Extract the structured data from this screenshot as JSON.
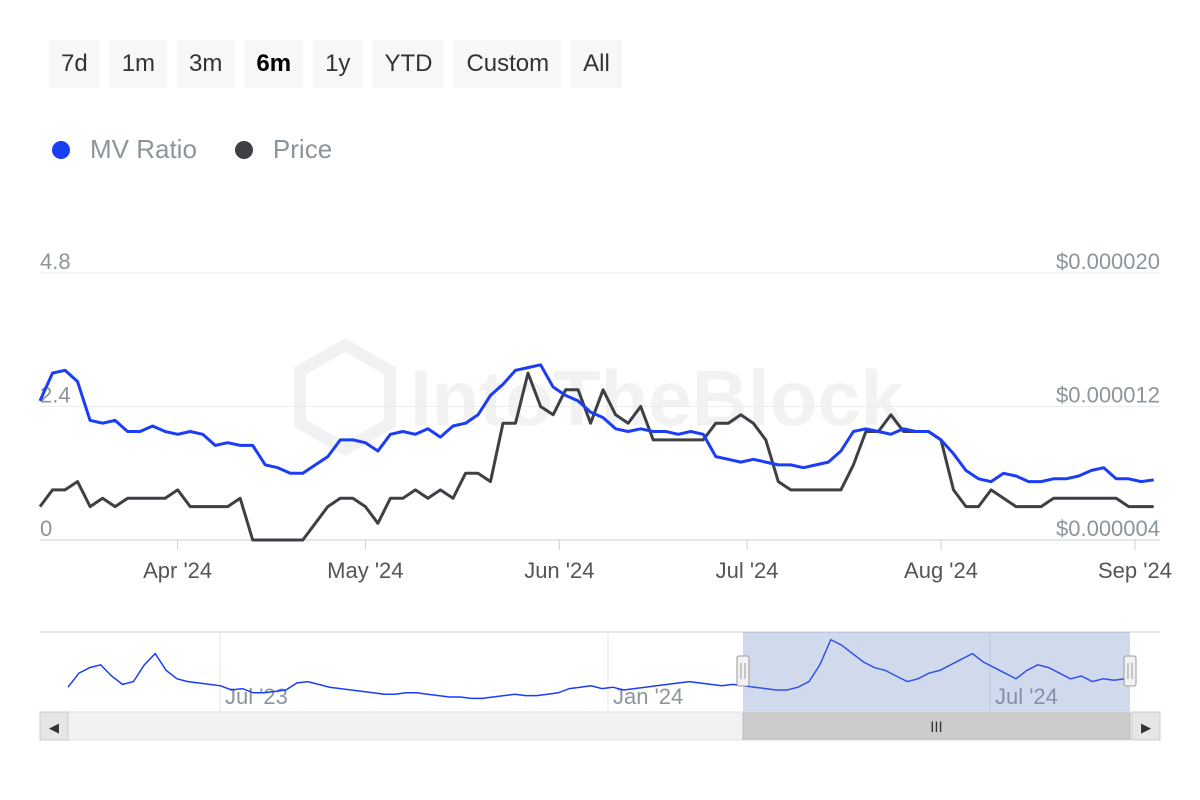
{
  "range_selector": {
    "buttons": [
      {
        "label": "7d",
        "selected": false
      },
      {
        "label": "1m",
        "selected": false
      },
      {
        "label": "3m",
        "selected": false
      },
      {
        "label": "6m",
        "selected": true
      },
      {
        "label": "1y",
        "selected": false
      },
      {
        "label": "YTD",
        "selected": false
      },
      {
        "label": "Custom",
        "selected": false
      },
      {
        "label": "All",
        "selected": false
      }
    ]
  },
  "legend": {
    "items": [
      {
        "label": "MV Ratio",
        "color": "#1a3df5"
      },
      {
        "label": "Price",
        "color": "#3d4045"
      }
    ]
  },
  "watermark": {
    "text": "IntoTheBlock"
  },
  "chart_data": {
    "type": "line",
    "title": "",
    "xlabel": "",
    "x_range": [
      "2024-03-10",
      "2024-09-05"
    ],
    "x_ticks": [
      {
        "date": "2024-04-01",
        "label": "Apr '24"
      },
      {
        "date": "2024-05-01",
        "label": "May '24"
      },
      {
        "date": "2024-06-01",
        "label": "Jun '24"
      },
      {
        "date": "2024-07-01",
        "label": "Jul '24"
      },
      {
        "date": "2024-08-01",
        "label": "Aug '24"
      },
      {
        "date": "2024-09-01",
        "label": "Sep '24"
      }
    ],
    "y_left": {
      "range": [
        0,
        4.8
      ],
      "ticks": [
        "0",
        "2.4",
        "4.8"
      ]
    },
    "y_right": {
      "range": [
        4e-06,
        2e-05
      ],
      "ticks": [
        "$0.000004",
        "$0.000012",
        "$0.000020"
      ]
    },
    "grid": true,
    "legend_position": "top-left",
    "series": [
      {
        "name": "MV Ratio",
        "axis": "left",
        "color": "#1a3df5",
        "x": [
          "2024-03-10",
          "2024-03-12",
          "2024-03-14",
          "2024-03-16",
          "2024-03-18",
          "2024-03-20",
          "2024-03-22",
          "2024-03-24",
          "2024-03-26",
          "2024-03-28",
          "2024-03-30",
          "2024-04-01",
          "2024-04-03",
          "2024-04-05",
          "2024-04-07",
          "2024-04-09",
          "2024-04-11",
          "2024-04-13",
          "2024-04-15",
          "2024-04-17",
          "2024-04-19",
          "2024-04-21",
          "2024-04-23",
          "2024-04-25",
          "2024-04-27",
          "2024-04-29",
          "2024-05-01",
          "2024-05-03",
          "2024-05-05",
          "2024-05-07",
          "2024-05-09",
          "2024-05-11",
          "2024-05-13",
          "2024-05-15",
          "2024-05-17",
          "2024-05-19",
          "2024-05-21",
          "2024-05-23",
          "2024-05-25",
          "2024-05-27",
          "2024-05-29",
          "2024-05-31",
          "2024-06-02",
          "2024-06-04",
          "2024-06-06",
          "2024-06-08",
          "2024-06-10",
          "2024-06-12",
          "2024-06-14",
          "2024-06-16",
          "2024-06-18",
          "2024-06-20",
          "2024-06-22",
          "2024-06-24",
          "2024-06-26",
          "2024-06-28",
          "2024-06-30",
          "2024-07-02",
          "2024-07-04",
          "2024-07-06",
          "2024-07-08",
          "2024-07-10",
          "2024-07-12",
          "2024-07-14",
          "2024-07-16",
          "2024-07-18",
          "2024-07-20",
          "2024-07-22",
          "2024-07-24",
          "2024-07-26",
          "2024-07-28",
          "2024-07-30",
          "2024-08-01",
          "2024-08-03",
          "2024-08-05",
          "2024-08-07",
          "2024-08-09",
          "2024-08-11",
          "2024-08-13",
          "2024-08-15",
          "2024-08-17",
          "2024-08-19",
          "2024-08-21",
          "2024-08-23",
          "2024-08-25",
          "2024-08-27",
          "2024-08-29",
          "2024-08-31",
          "2024-09-02",
          "2024-09-04"
        ],
        "y": [
          2.5,
          3.0,
          3.05,
          2.85,
          2.15,
          2.1,
          2.15,
          1.95,
          1.95,
          2.05,
          1.95,
          1.9,
          1.95,
          1.9,
          1.7,
          1.75,
          1.7,
          1.7,
          1.35,
          1.3,
          1.2,
          1.2,
          1.35,
          1.5,
          1.8,
          1.8,
          1.75,
          1.6,
          1.9,
          1.95,
          1.9,
          2.0,
          1.85,
          2.05,
          2.1,
          2.25,
          2.6,
          2.8,
          3.05,
          3.1,
          3.15,
          2.75,
          2.6,
          2.5,
          2.3,
          2.2,
          2.0,
          1.95,
          2.0,
          1.95,
          1.95,
          1.9,
          1.95,
          1.9,
          1.5,
          1.45,
          1.4,
          1.45,
          1.4,
          1.35,
          1.35,
          1.3,
          1.35,
          1.4,
          1.6,
          1.95,
          2.0,
          1.95,
          1.9,
          2.0,
          1.95,
          1.95,
          1.8,
          1.55,
          1.25,
          1.1,
          1.05,
          1.2,
          1.15,
          1.05,
          1.05,
          1.1,
          1.1,
          1.15,
          1.25,
          1.3,
          1.1,
          1.1,
          1.05,
          1.08
        ]
      },
      {
        "name": "Price",
        "axis": "right",
        "color": "#3d4045",
        "x": [
          "2024-03-10",
          "2024-03-12",
          "2024-03-14",
          "2024-03-16",
          "2024-03-18",
          "2024-03-20",
          "2024-03-22",
          "2024-03-24",
          "2024-03-26",
          "2024-03-28",
          "2024-03-30",
          "2024-04-01",
          "2024-04-03",
          "2024-04-05",
          "2024-04-07",
          "2024-04-09",
          "2024-04-11",
          "2024-04-13",
          "2024-04-15",
          "2024-04-17",
          "2024-04-19",
          "2024-04-21",
          "2024-04-23",
          "2024-04-25",
          "2024-04-27",
          "2024-04-29",
          "2024-05-01",
          "2024-05-03",
          "2024-05-05",
          "2024-05-07",
          "2024-05-09",
          "2024-05-11",
          "2024-05-13",
          "2024-05-15",
          "2024-05-17",
          "2024-05-19",
          "2024-05-21",
          "2024-05-23",
          "2024-05-25",
          "2024-05-27",
          "2024-05-29",
          "2024-05-31",
          "2024-06-02",
          "2024-06-04",
          "2024-06-06",
          "2024-06-08",
          "2024-06-10",
          "2024-06-12",
          "2024-06-14",
          "2024-06-16",
          "2024-06-18",
          "2024-06-20",
          "2024-06-22",
          "2024-06-24",
          "2024-06-26",
          "2024-06-28",
          "2024-06-30",
          "2024-07-02",
          "2024-07-04",
          "2024-07-06",
          "2024-07-08",
          "2024-07-10",
          "2024-07-12",
          "2024-07-14",
          "2024-07-16",
          "2024-07-18",
          "2024-07-20",
          "2024-07-22",
          "2024-07-24",
          "2024-07-26",
          "2024-07-28",
          "2024-07-30",
          "2024-08-01",
          "2024-08-03",
          "2024-08-05",
          "2024-08-07",
          "2024-08-09",
          "2024-08-11",
          "2024-08-13",
          "2024-08-15",
          "2024-08-17",
          "2024-08-19",
          "2024-08-21",
          "2024-08-23",
          "2024-08-25",
          "2024-08-27",
          "2024-08-29",
          "2024-08-31",
          "2024-09-02",
          "2024-09-04"
        ],
        "y": [
          6e-06,
          7e-06,
          7e-06,
          7.5e-06,
          6e-06,
          6.5e-06,
          6e-06,
          6.5e-06,
          6.5e-06,
          6.5e-06,
          6.5e-06,
          7e-06,
          6e-06,
          6e-06,
          6e-06,
          6e-06,
          6.5e-06,
          4e-06,
          4e-06,
          4e-06,
          4e-06,
          4e-06,
          5e-06,
          6e-06,
          6.5e-06,
          6.5e-06,
          6e-06,
          5e-06,
          6.5e-06,
          6.5e-06,
          7e-06,
          6.5e-06,
          7e-06,
          6.5e-06,
          8e-06,
          8e-06,
          7.5e-06,
          1.1e-05,
          1.1e-05,
          1.4e-05,
          1.2e-05,
          1.15e-05,
          1.3e-05,
          1.3e-05,
          1.1e-05,
          1.3e-05,
          1.15e-05,
          1.1e-05,
          1.2e-05,
          1e-05,
          1e-05,
          1e-05,
          1e-05,
          1e-05,
          1.1e-05,
          1.1e-05,
          1.15e-05,
          1.1e-05,
          1e-05,
          7.5e-06,
          7e-06,
          7e-06,
          7e-06,
          7e-06,
          7e-06,
          8.5e-06,
          1.05e-05,
          1.05e-05,
          1.15e-05,
          1.05e-05,
          1.05e-05,
          1.05e-05,
          1e-05,
          7e-06,
          6e-06,
          6e-06,
          7e-06,
          6.5e-06,
          6e-06,
          6e-06,
          6e-06,
          6.5e-06,
          6.5e-06,
          6.5e-06,
          6.5e-06,
          6.5e-06,
          6.5e-06,
          6e-06,
          6e-06,
          6e-06
        ]
      }
    ]
  },
  "navigator": {
    "x_ticks": [
      {
        "label": "Jul '23"
      },
      {
        "label": "Jan '24"
      },
      {
        "label": "Jul '24"
      }
    ],
    "series": {
      "name": "MV Ratio",
      "values": [
        2.1,
        2.6,
        2.8,
        2.9,
        2.5,
        2.2,
        2.3,
        2.9,
        3.3,
        2.7,
        2.4,
        2.3,
        2.25,
        2.2,
        2.15,
        2.0,
        2.05,
        1.9,
        1.9,
        1.95,
        2.0,
        2.25,
        2.3,
        2.2,
        2.1,
        2.05,
        2.0,
        1.95,
        1.9,
        1.85,
        1.85,
        1.9,
        1.9,
        1.85,
        1.8,
        1.75,
        1.75,
        1.7,
        1.7,
        1.75,
        1.8,
        1.85,
        1.8,
        1.8,
        1.85,
        1.9,
        2.05,
        2.1,
        2.15,
        2.05,
        2.1,
        2.0,
        2.05,
        2.1,
        2.15,
        2.2,
        2.25,
        2.3,
        2.25,
        2.2,
        2.15,
        2.2,
        2.15,
        2.1,
        2.05,
        2.0,
        2.0,
        2.1,
        2.3,
        2.9,
        3.8,
        3.6,
        3.3,
        3.0,
        2.8,
        2.7,
        2.5,
        2.3,
        2.4,
        2.6,
        2.7,
        2.9,
        3.1,
        3.3,
        3.0,
        2.8,
        2.6,
        2.4,
        2.7,
        2.9,
        2.8,
        2.6,
        2.4,
        2.5,
        2.3,
        2.4,
        2.35,
        2.4
      ]
    }
  },
  "scrollbar": {
    "left_arrow": "◀",
    "right_arrow": "▶",
    "grip": "III"
  }
}
